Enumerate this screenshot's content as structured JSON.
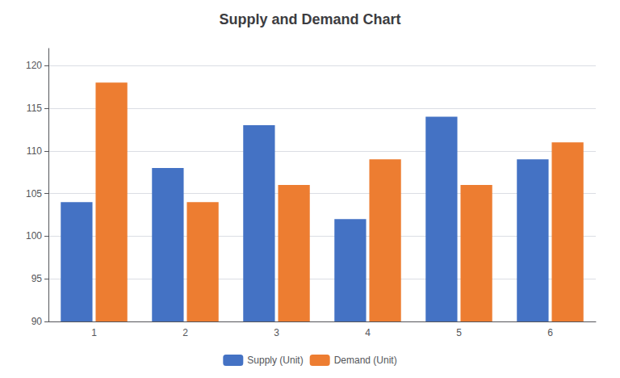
{
  "chart_data": {
    "type": "bar",
    "title": "Supply and Demand Chart",
    "categories": [
      "1",
      "2",
      "3",
      "4",
      "5",
      "6"
    ],
    "series": [
      {
        "name": "Supply (Unit)",
        "color": "#4472C4",
        "values": [
          104,
          108,
          113,
          102,
          114,
          109
        ]
      },
      {
        "name": "Demand (Unit)",
        "color": "#ED7D31",
        "values": [
          118,
          104,
          106,
          109,
          106,
          111
        ]
      }
    ],
    "ylim": [
      90,
      122
    ],
    "yticks": [
      90,
      95,
      100,
      105,
      110,
      115,
      120
    ],
    "grid": true,
    "legend": "bottom"
  }
}
